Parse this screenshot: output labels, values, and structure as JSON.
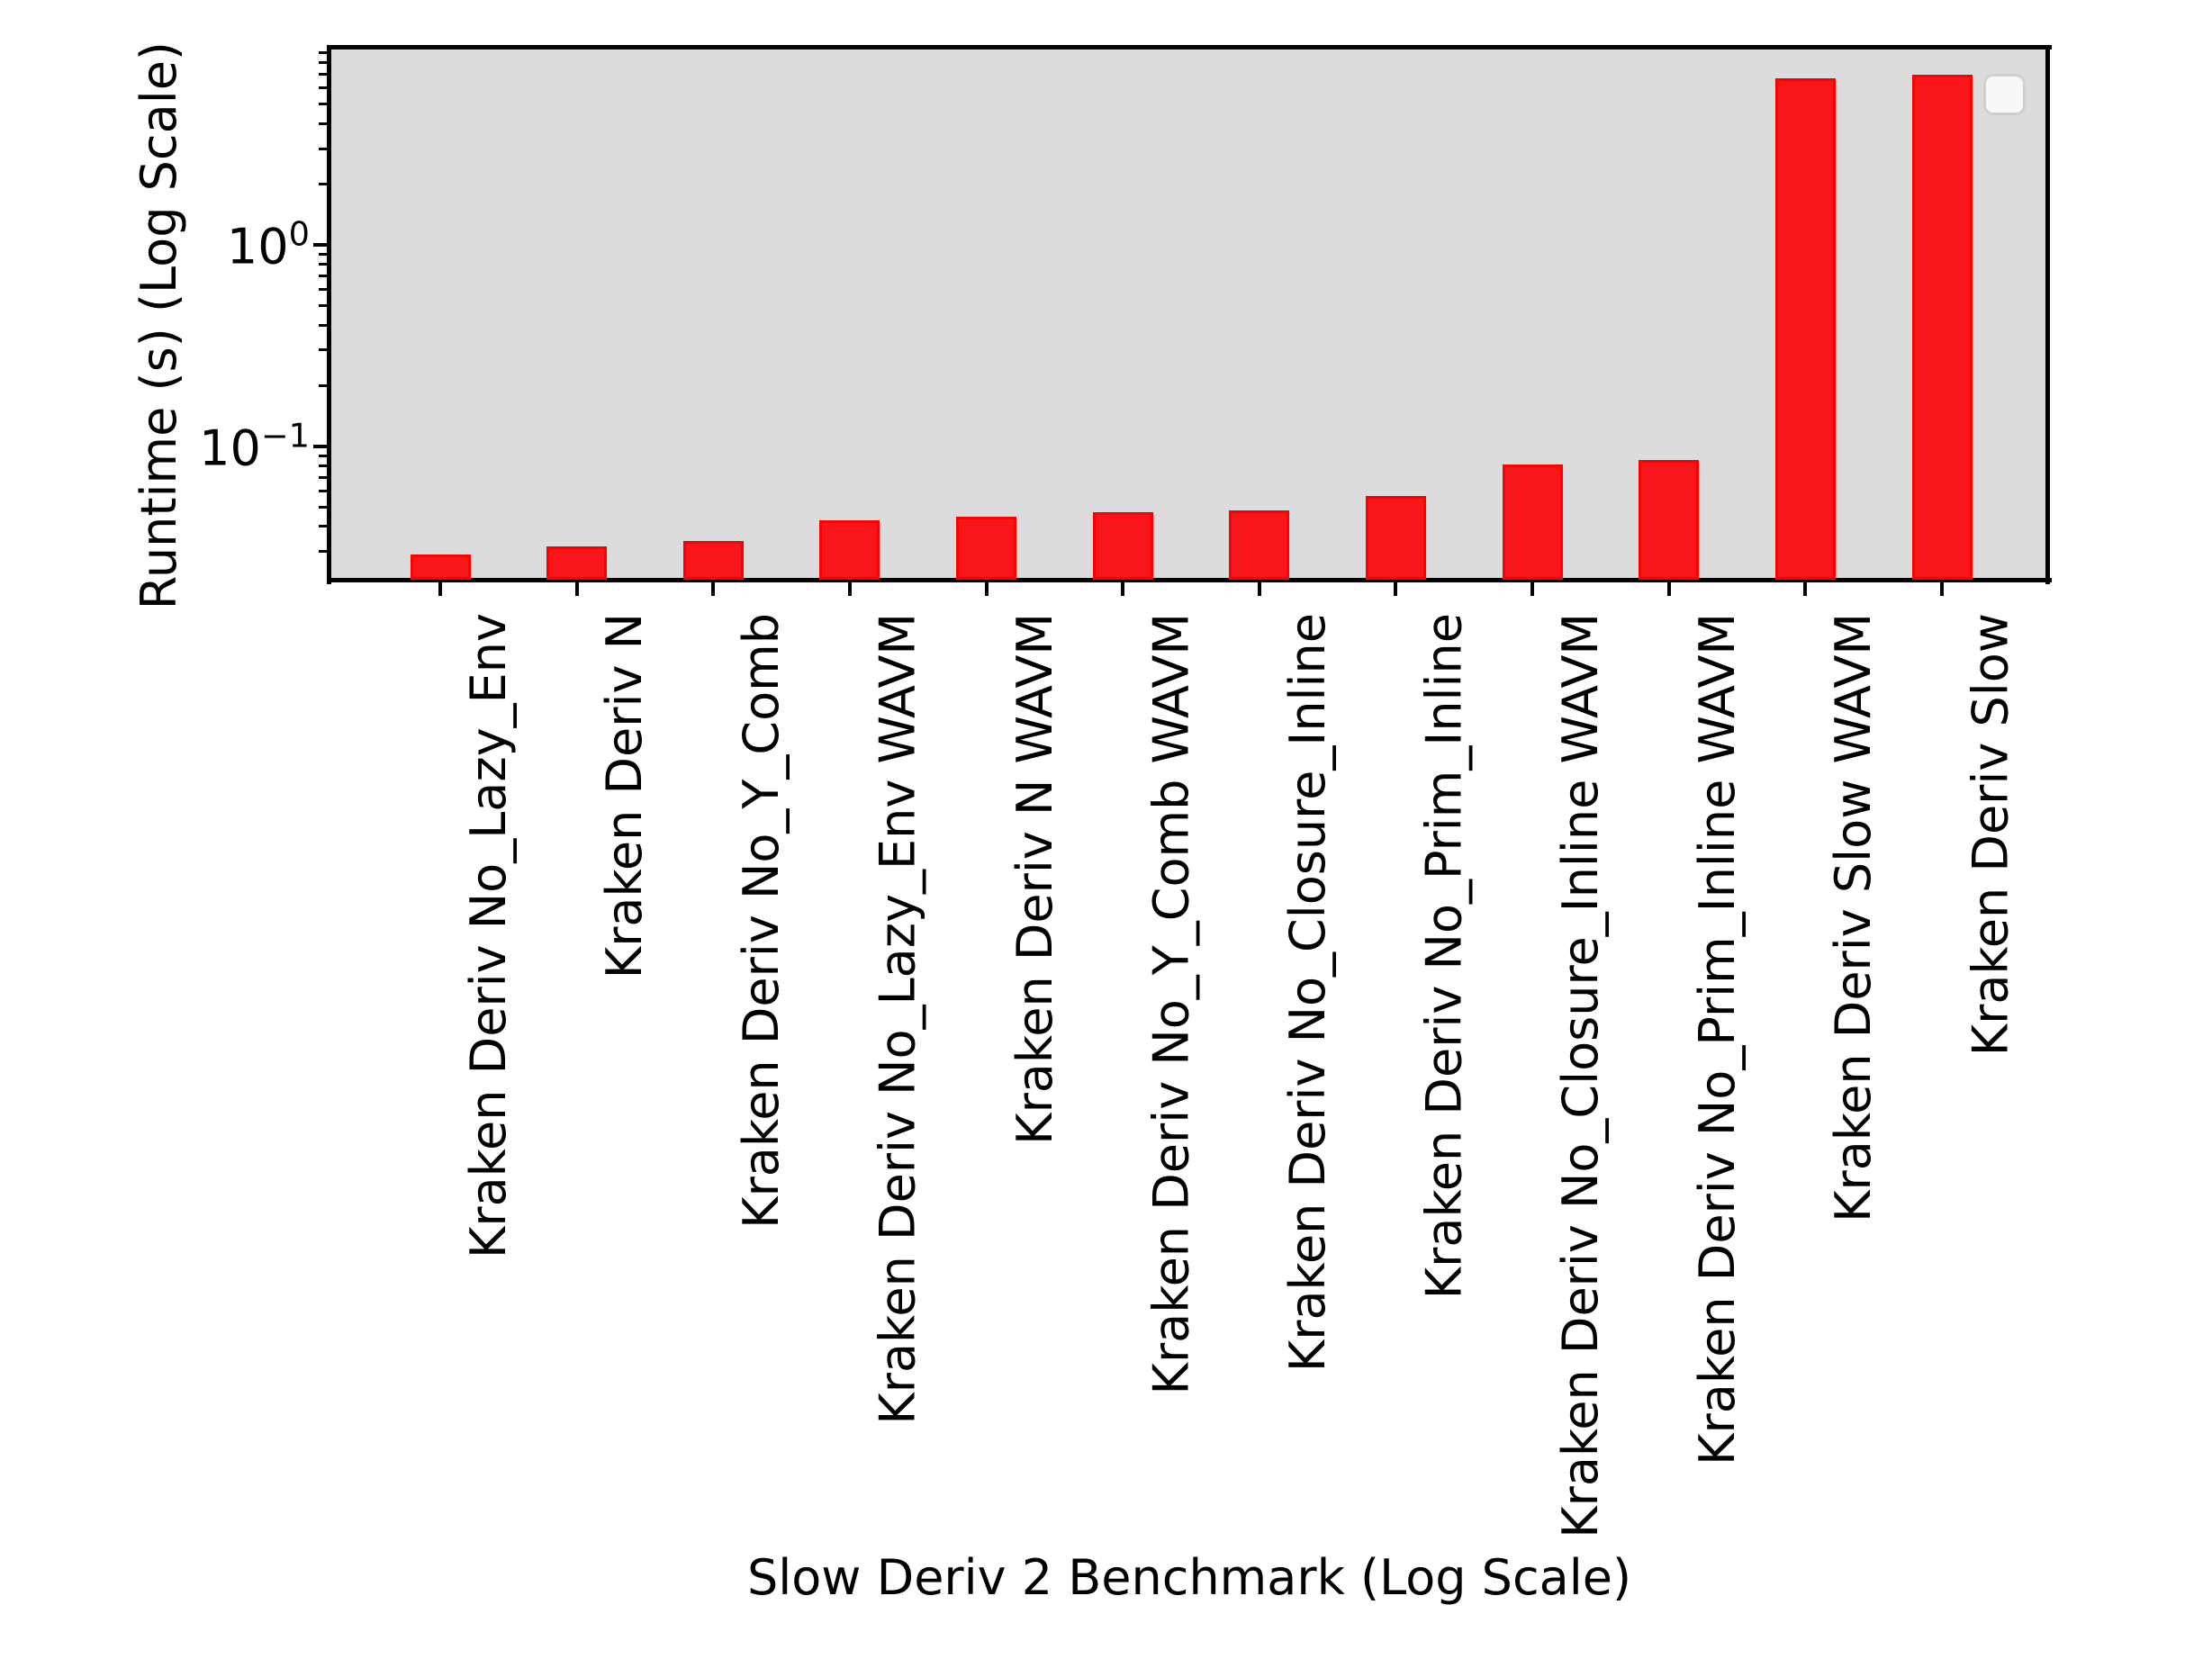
{
  "figure": {
    "background": "#ffffff",
    "plot_background": "#dcdcdc"
  },
  "chart_data": {
    "type": "bar",
    "title": "",
    "xlabel": "Slow Deriv 2 Benchmark (Log Scale)",
    "ylabel": "Runtime (s) (Log Scale)",
    "yscale": "log",
    "ylim": [
      0.0218,
      9.3
    ],
    "grid": false,
    "legend_position": "upper right",
    "legend_entries": [],
    "bar_fill": "#f9161a",
    "bar_edge": "#ff0000",
    "categories": [
      "Kraken Deriv No_Lazy_Env",
      "Kraken Deriv N",
      "Kraken Deriv No_Y_Comb",
      "Kraken Deriv No_Lazy_Env WAVM",
      "Kraken Deriv N WAVM",
      "Kraken Deriv No_Y_Comb WAVM",
      "Kraken Deriv No_Closure_Inline",
      "Kraken Deriv No_Prim_Inline",
      "Kraken Deriv No_Closure_Inline WAVM",
      "Kraken Deriv No_Prim_Inline WAVM",
      "Kraken Deriv Slow WAVM",
      "Kraken Deriv Slow"
    ],
    "values": [
      0.029,
      0.032,
      0.034,
      0.043,
      0.045,
      0.047,
      0.048,
      0.057,
      0.081,
      0.086,
      6.7,
      7.0
    ],
    "y_major_ticks": [
      {
        "value": 1,
        "base": "10",
        "exponent": "0"
      },
      {
        "value": 0.1,
        "base": "10",
        "exponent": "−1"
      }
    ]
  }
}
